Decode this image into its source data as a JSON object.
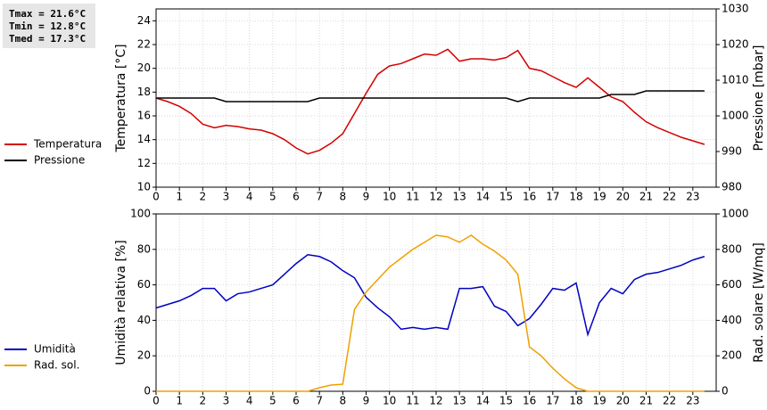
{
  "stats": [
    "Tmax = 21.6°C",
    "Tmin = 12.8°C",
    "Tmed = 17.3°C"
  ],
  "chart_data": [
    {
      "type": "line",
      "ylabel": "Temperatura [°C]",
      "y2label": "Pressione [mbar]",
      "x": [
        0,
        0.5,
        1,
        1.5,
        2,
        2.5,
        3,
        3.5,
        4,
        4.5,
        5,
        5.5,
        6,
        6.5,
        7,
        7.5,
        8,
        8.5,
        9,
        9.5,
        10,
        10.5,
        11,
        11.5,
        12,
        12.5,
        13,
        13.5,
        14,
        14.5,
        15,
        15.5,
        16,
        16.5,
        17,
        17.5,
        18,
        18.5,
        19,
        19.5,
        20,
        20.5,
        21,
        21.5,
        22,
        22.5,
        23,
        23.5
      ],
      "series": [
        {
          "name": "Temperatura",
          "color": "#d40000",
          "values": [
            17.5,
            17.2,
            16.8,
            16.2,
            15.3,
            15.0,
            15.2,
            15.1,
            14.9,
            14.8,
            14.5,
            14.0,
            13.3,
            12.8,
            13.1,
            13.7,
            14.5,
            16.2,
            17.9,
            19.5,
            20.2,
            20.4,
            20.8,
            21.2,
            21.1,
            21.6,
            20.6,
            20.8,
            20.8,
            20.7,
            20.9,
            21.5,
            20.0,
            19.8,
            19.3,
            18.8,
            18.4,
            19.2,
            18.4,
            17.6,
            17.2,
            16.3,
            15.5,
            15.0,
            14.6,
            14.2,
            13.9,
            13.6
          ]
        },
        {
          "name": "Pressione",
          "color": "#000000",
          "axis": "y2",
          "values": [
            1005,
            1005,
            1005,
            1005,
            1005,
            1005,
            1004,
            1004,
            1004,
            1004,
            1004,
            1004,
            1004,
            1004,
            1005,
            1005,
            1005,
            1005,
            1005,
            1005,
            1005,
            1005,
            1005,
            1005,
            1005,
            1005,
            1005,
            1005,
            1005,
            1005,
            1005,
            1004,
            1005,
            1005,
            1005,
            1005,
            1005,
            1005,
            1005,
            1006,
            1006,
            1006,
            1007,
            1007,
            1007,
            1007,
            1007,
            1007
          ]
        }
      ],
      "xlim": [
        0,
        24
      ],
      "xticks": [
        0,
        1,
        2,
        3,
        4,
        5,
        6,
        7,
        8,
        9,
        10,
        11,
        12,
        13,
        14,
        15,
        16,
        17,
        18,
        19,
        20,
        21,
        22,
        23
      ],
      "ylim": [
        10,
        25
      ],
      "yticks": [
        10,
        12,
        14,
        16,
        18,
        20,
        22,
        24
      ],
      "y2lim": [
        980,
        1030
      ],
      "y2ticks": [
        980,
        990,
        1000,
        1010,
        1020,
        1030
      ],
      "grid": true
    },
    {
      "type": "line",
      "ylabel": "Umidità relativa [%]",
      "y2label": "Rad. solare [W/mq]",
      "x": [
        0,
        0.5,
        1,
        1.5,
        2,
        2.5,
        3,
        3.5,
        4,
        4.5,
        5,
        5.5,
        6,
        6.5,
        7,
        7.5,
        8,
        8.5,
        9,
        9.5,
        10,
        10.5,
        11,
        11.5,
        12,
        12.5,
        13,
        13.5,
        14,
        14.5,
        15,
        15.5,
        16,
        16.5,
        17,
        17.5,
        18,
        18.5,
        19,
        19.5,
        20,
        20.5,
        21,
        21.5,
        22,
        22.5,
        23,
        23.5
      ],
      "series": [
        {
          "name": "Umidità",
          "color": "#0000c0",
          "values": [
            47,
            49,
            51,
            54,
            58,
            58,
            51,
            55,
            56,
            58,
            60,
            66,
            72,
            77,
            76,
            73,
            68,
            64,
            53,
            47,
            42,
            35,
            36,
            35,
            36,
            35,
            58,
            58,
            59,
            48,
            45,
            37,
            41,
            49,
            58,
            57,
            61,
            32,
            50,
            58,
            55,
            63,
            66,
            67,
            69,
            71,
            74,
            76
          ]
        },
        {
          "name": "Rad. sol.",
          "color": "#f0a000",
          "axis": "y2",
          "values": [
            0,
            0,
            0,
            0,
            0,
            0,
            0,
            0,
            0,
            0,
            0,
            0,
            0,
            0,
            20,
            35,
            40,
            460,
            560,
            630,
            700,
            750,
            800,
            840,
            880,
            870,
            840,
            880,
            830,
            790,
            740,
            660,
            250,
            200,
            130,
            70,
            20,
            0,
            0,
            0,
            0,
            0,
            0,
            0,
            0,
            0,
            0,
            0
          ]
        }
      ],
      "xlim": [
        0,
        24
      ],
      "xticks": [
        0,
        1,
        2,
        3,
        4,
        5,
        6,
        7,
        8,
        9,
        10,
        11,
        12,
        13,
        14,
        15,
        16,
        17,
        18,
        19,
        20,
        21,
        22,
        23
      ],
      "ylim": [
        0,
        100
      ],
      "yticks": [
        0,
        20,
        40,
        60,
        80,
        100
      ],
      "y2lim": [
        0,
        1000
      ],
      "y2ticks": [
        0,
        200,
        400,
        600,
        800,
        1000
      ],
      "grid": true
    }
  ]
}
